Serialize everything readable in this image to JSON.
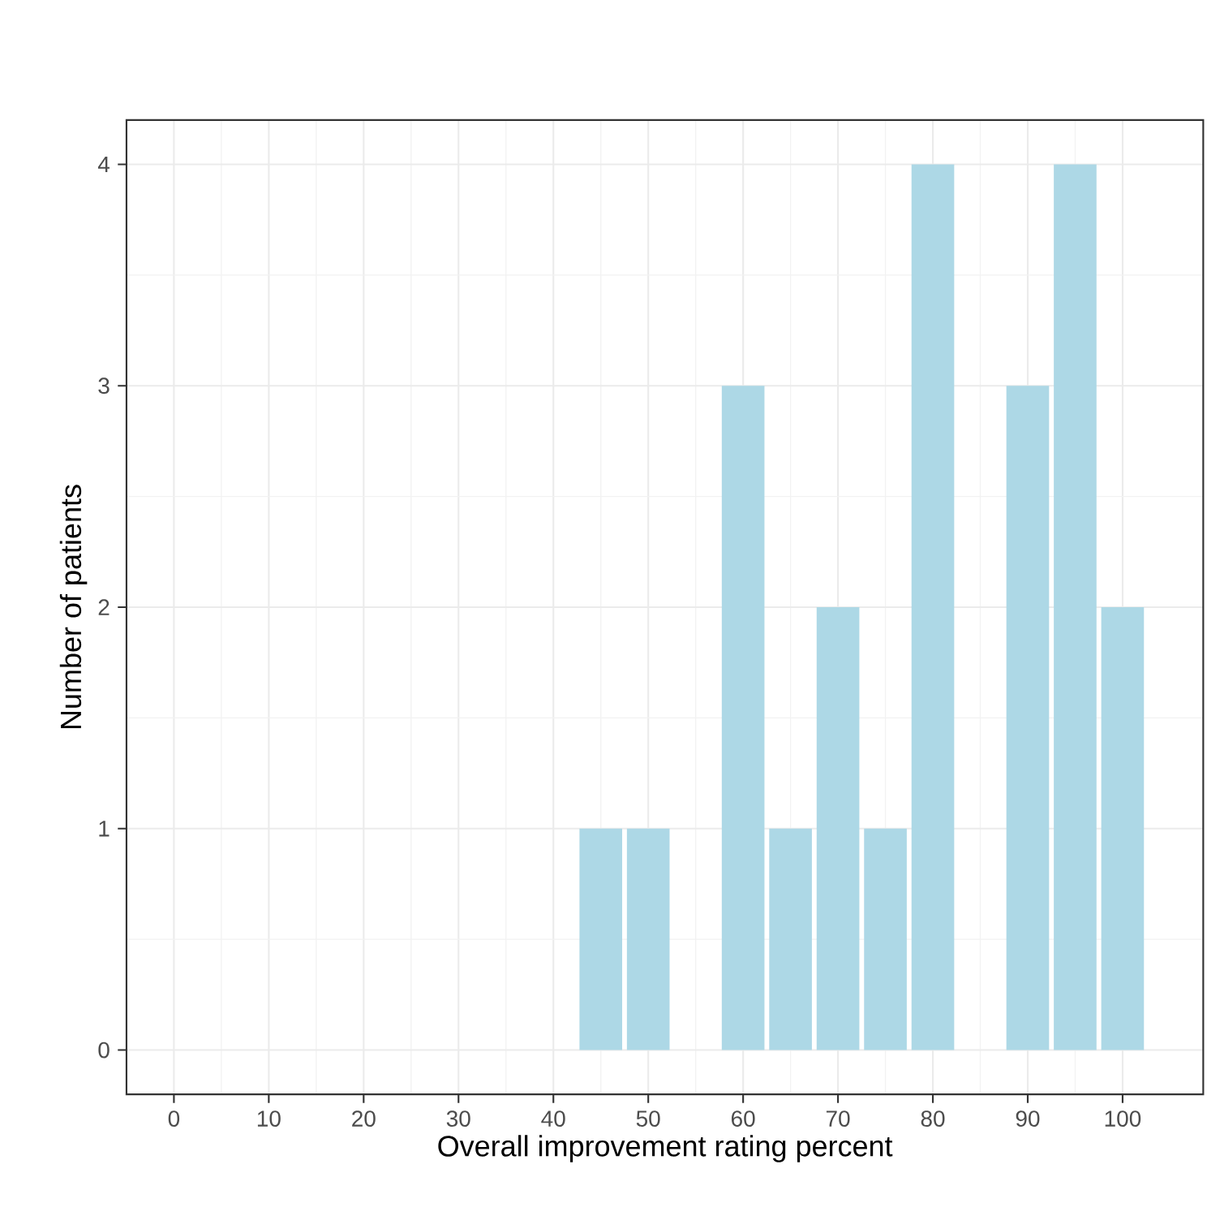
{
  "chart_data": {
    "type": "bar",
    "xlabel": "Overall improvement rating percent",
    "ylabel": "Number of patients",
    "x": [
      45,
      50,
      60,
      65,
      70,
      75,
      80,
      90,
      95,
      100
    ],
    "values": [
      1,
      1,
      3,
      1,
      2,
      1,
      4,
      3,
      4,
      2
    ],
    "color": "#add8e6",
    "xlim": [
      -5,
      108.5
    ],
    "ylim": [
      -0.2,
      4.2
    ],
    "xticks": [
      0,
      10,
      20,
      30,
      40,
      50,
      60,
      70,
      80,
      90,
      100
    ],
    "yticks": [
      0,
      1,
      2,
      3,
      4
    ],
    "grid": true
  }
}
